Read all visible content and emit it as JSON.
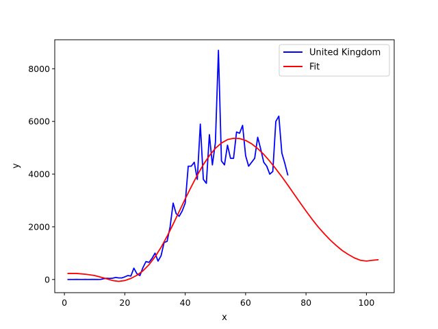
{
  "chart_data": {
    "type": "line",
    "xlabel": "x",
    "ylabel": "y",
    "xlim": [
      -3.2,
      109.2
    ],
    "ylim": [
      -500,
      9100
    ],
    "xticks": [
      0,
      20,
      40,
      60,
      80,
      100
    ],
    "yticks": [
      0,
      2000,
      4000,
      6000,
      8000
    ],
    "legend_position": "top-right",
    "grid": false,
    "series": [
      {
        "name": "United Kingdom",
        "color": "#0000ff",
        "x": [
          1,
          2,
          3,
          4,
          5,
          6,
          7,
          8,
          9,
          10,
          11,
          12,
          13,
          14,
          15,
          16,
          17,
          18,
          19,
          20,
          21,
          22,
          23,
          24,
          25,
          26,
          27,
          28,
          29,
          30,
          31,
          32,
          33,
          34,
          35,
          36,
          37,
          38,
          39,
          40,
          41,
          42,
          43,
          44,
          45,
          46,
          47,
          48,
          49,
          50,
          51,
          52,
          53,
          54,
          55,
          56,
          57,
          58,
          59,
          60,
          61,
          62,
          63,
          64,
          65,
          66,
          67,
          68,
          69,
          70,
          71,
          72,
          73,
          74
        ],
        "y": [
          0,
          0,
          0,
          2,
          0,
          0,
          2,
          0,
          2,
          3,
          0,
          5,
          30,
          45,
          40,
          50,
          80,
          60,
          60,
          100,
          150,
          130,
          430,
          220,
          150,
          450,
          680,
          650,
          800,
          1000,
          700,
          900,
          1400,
          1450,
          2000,
          2900,
          2500,
          2400,
          2600,
          2900,
          4300,
          4300,
          4450,
          3800,
          5900,
          3800,
          3650,
          5500,
          4350,
          5200,
          8700,
          4500,
          4350,
          5100,
          4600,
          4600,
          5600,
          5550,
          5850,
          4700,
          4300,
          4450,
          4600,
          5400,
          4950,
          4450,
          4300,
          4000,
          4100,
          6000,
          6200,
          4800,
          4400,
          3950
        ]
      },
      {
        "name": "Fit",
        "color": "#ff0000",
        "x": [
          1,
          4,
          7,
          10,
          13,
          16,
          18,
          20,
          22,
          24,
          26,
          28,
          30,
          32,
          34,
          36,
          38,
          40,
          42,
          44,
          46,
          48,
          50,
          52,
          54,
          56,
          58,
          60,
          62,
          64,
          66,
          68,
          70,
          72,
          74,
          76,
          78,
          80,
          82,
          84,
          86,
          88,
          90,
          92,
          94,
          96,
          98,
          100,
          102,
          104
        ],
        "y": [
          230,
          230,
          200,
          150,
          60,
          -40,
          -70,
          -40,
          40,
          160,
          330,
          560,
          860,
          1220,
          1640,
          2100,
          2580,
          3060,
          3520,
          3960,
          4360,
          4700,
          4980,
          5180,
          5310,
          5360,
          5350,
          5280,
          5150,
          4970,
          4750,
          4490,
          4200,
          3900,
          3580,
          3250,
          2920,
          2600,
          2290,
          2000,
          1740,
          1500,
          1290,
          1100,
          950,
          820,
          730,
          700,
          730,
          750
        ]
      }
    ]
  }
}
